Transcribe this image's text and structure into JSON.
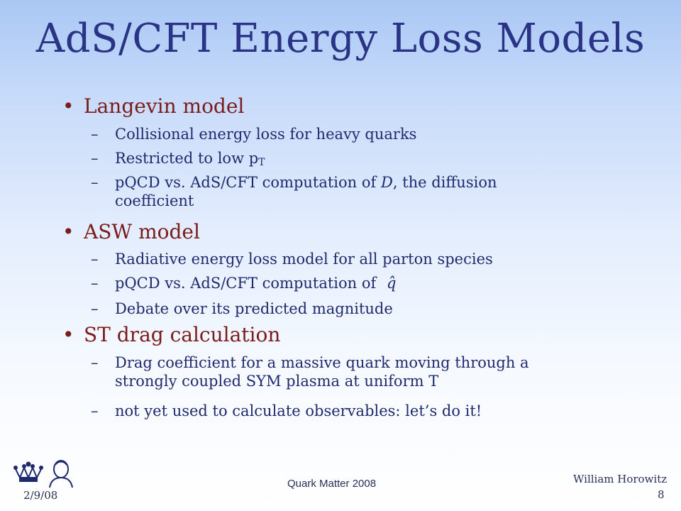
{
  "slide": {
    "title": "AdS/CFT Energy Loss Models",
    "bullets": [
      {
        "label": "Langevin model",
        "subs": [
          {
            "text": "Collisional energy loss for heavy quarks"
          },
          {
            "pre": "Restricted to low p",
            "sub": "T"
          },
          {
            "pre": "pQCD vs. AdS/CFT computation of ",
            "italic": "D",
            "post": ", the diffusion coefficient"
          }
        ]
      },
      {
        "label": "ASW model",
        "subs": [
          {
            "text": "Radiative energy loss model for all parton species"
          },
          {
            "pre": "pQCD vs. AdS/CFT computation of ",
            "symbol": "q̂"
          },
          {
            "text": "Debate over its predicted magnitude"
          }
        ]
      },
      {
        "label": "ST drag calculation",
        "subs": [
          {
            "text": "Drag coefficient for a massive quark moving through a strongly coupled SYM plasma at uniform T"
          },
          {
            "text": "not yet used to calculate observables: let’s do it!"
          }
        ]
      }
    ]
  },
  "footer": {
    "date": "2/9/08",
    "conference": "Quark Matter 2008",
    "author": "William Horowitz",
    "page": "8"
  },
  "glyphs": {
    "bullet": "•",
    "dash": "–"
  },
  "colors": {
    "title": "#2a3386",
    "bullet": "#7a1c1c",
    "subtext": "#1f2a6e"
  }
}
